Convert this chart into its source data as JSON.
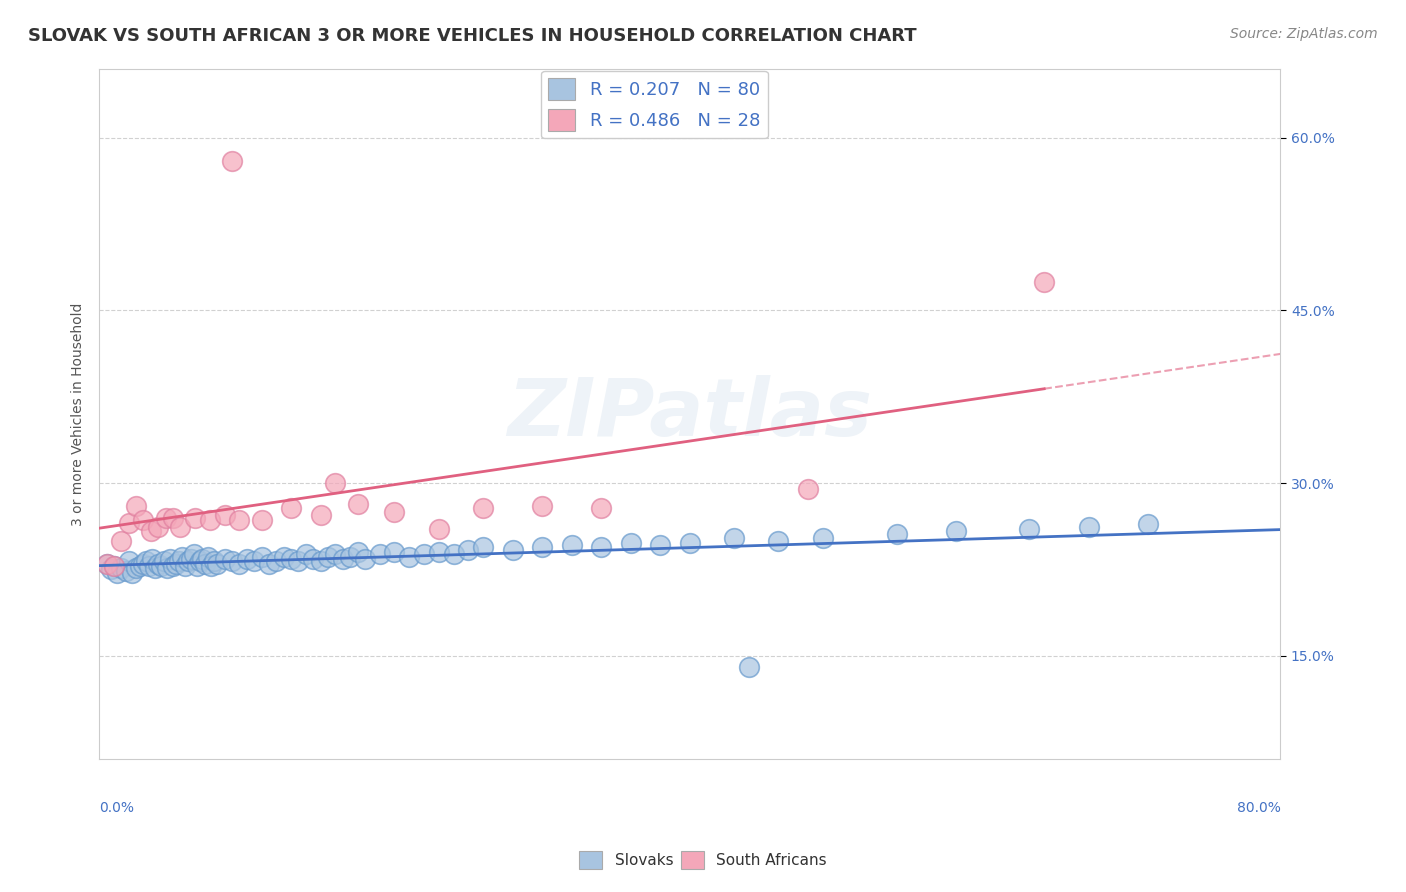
{
  "title": "SLOVAK VS SOUTH AFRICAN 3 OR MORE VEHICLES IN HOUSEHOLD CORRELATION CHART",
  "source": "Source: ZipAtlas.com",
  "ylabel": "3 or more Vehicles in Household",
  "xmin": 0.0,
  "xmax": 0.8,
  "ymin": 0.06,
  "ymax": 0.66,
  "yticks": [
    0.15,
    0.3,
    0.45,
    0.6
  ],
  "ytick_labels": [
    "15.0%",
    "30.0%",
    "45.0%",
    "60.0%"
  ],
  "background_color": "#ffffff",
  "grid_color": "#cccccc",
  "slovak_color": "#a8c4e0",
  "south_african_color": "#f4a7b9",
  "slovak_edge_color": "#6699cc",
  "south_african_edge_color": "#e080a0",
  "slovak_R": 0.207,
  "slovak_N": 80,
  "sa_R": 0.486,
  "sa_N": 28,
  "slovak_line_color": "#4472c4",
  "sa_line_color": "#e06080",
  "legend_text_color": "#4472c4",
  "title_color": "#333333",
  "title_fontsize": 13,
  "source_fontsize": 10,
  "axis_fontsize": 10,
  "legend_fontsize": 13,
  "watermark": "ZIPatlas",
  "slovak_scatter_x": [
    0.005,
    0.008,
    0.01,
    0.012,
    0.015,
    0.018,
    0.02,
    0.022,
    0.025,
    0.028,
    0.03,
    0.032,
    0.034,
    0.036,
    0.038,
    0.04,
    0.042,
    0.044,
    0.046,
    0.048,
    0.05,
    0.052,
    0.054,
    0.056,
    0.058,
    0.06,
    0.062,
    0.064,
    0.066,
    0.068,
    0.07,
    0.072,
    0.074,
    0.076,
    0.078,
    0.08,
    0.085,
    0.09,
    0.095,
    0.1,
    0.105,
    0.11,
    0.115,
    0.12,
    0.125,
    0.13,
    0.135,
    0.14,
    0.145,
    0.15,
    0.155,
    0.16,
    0.165,
    0.17,
    0.175,
    0.18,
    0.19,
    0.2,
    0.21,
    0.22,
    0.23,
    0.24,
    0.25,
    0.26,
    0.28,
    0.3,
    0.32,
    0.34,
    0.36,
    0.38,
    0.4,
    0.43,
    0.46,
    0.49,
    0.54,
    0.58,
    0.63,
    0.67,
    0.71,
    0.44
  ],
  "slovak_scatter_y": [
    0.23,
    0.225,
    0.228,
    0.222,
    0.226,
    0.224,
    0.232,
    0.222,
    0.226,
    0.228,
    0.23,
    0.232,
    0.228,
    0.234,
    0.226,
    0.23,
    0.228,
    0.232,
    0.226,
    0.234,
    0.228,
    0.23,
    0.232,
    0.236,
    0.228,
    0.232,
    0.234,
    0.238,
    0.228,
    0.232,
    0.234,
    0.23,
    0.236,
    0.228,
    0.232,
    0.23,
    0.234,
    0.232,
    0.23,
    0.234,
    0.232,
    0.236,
    0.23,
    0.232,
    0.236,
    0.234,
    0.232,
    0.238,
    0.234,
    0.232,
    0.236,
    0.238,
    0.234,
    0.236,
    0.24,
    0.234,
    0.238,
    0.24,
    0.236,
    0.238,
    0.24,
    0.238,
    0.242,
    0.244,
    0.242,
    0.244,
    0.246,
    0.244,
    0.248,
    0.246,
    0.248,
    0.252,
    0.25,
    0.252,
    0.256,
    0.258,
    0.26,
    0.262,
    0.264,
    0.14
  ],
  "sa_scatter_x": [
    0.005,
    0.01,
    0.015,
    0.02,
    0.025,
    0.03,
    0.035,
    0.04,
    0.045,
    0.05,
    0.055,
    0.065,
    0.075,
    0.085,
    0.095,
    0.11,
    0.13,
    0.15,
    0.175,
    0.2,
    0.23,
    0.26,
    0.3,
    0.34,
    0.16,
    0.64,
    0.48,
    0.09
  ],
  "sa_scatter_y": [
    0.23,
    0.228,
    0.25,
    0.265,
    0.28,
    0.268,
    0.258,
    0.262,
    0.27,
    0.27,
    0.262,
    0.27,
    0.268,
    0.272,
    0.268,
    0.268,
    0.278,
    0.272,
    0.282,
    0.275,
    0.26,
    0.278,
    0.28,
    0.278,
    0.3,
    0.475,
    0.295,
    0.58
  ]
}
